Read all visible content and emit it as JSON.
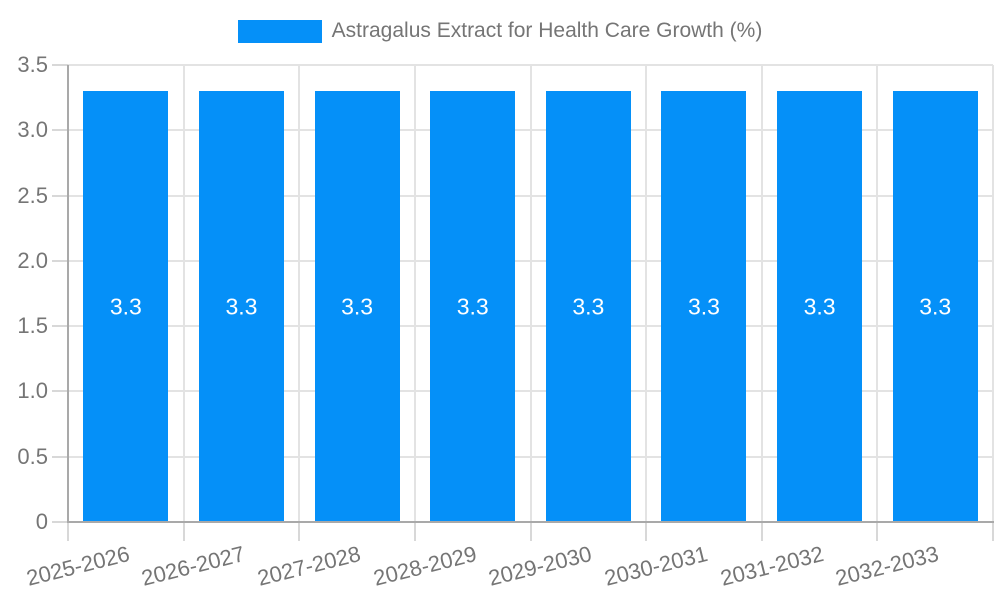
{
  "chart_data": {
    "type": "bar",
    "title": "Astragalus Extract for Health Care Growth (%)",
    "categories": [
      "2025-2026",
      "2026-2027",
      "2027-2028",
      "2028-2029",
      "2029-2030",
      "2030-2031",
      "2031-2032",
      "2032-2033"
    ],
    "values": [
      3.3,
      3.3,
      3.3,
      3.3,
      3.3,
      3.3,
      3.3,
      3.3
    ],
    "bar_labels": [
      "3.3",
      "3.3",
      "3.3",
      "3.3",
      "3.3",
      "3.3",
      "3.3",
      "3.3"
    ],
    "xlabel": "",
    "ylabel": "",
    "ylim": [
      0,
      3.5
    ],
    "ytick_values": [
      0,
      0.5,
      1,
      1.5,
      2,
      2.5,
      3,
      3.5
    ],
    "ytick_labels": [
      "0",
      "0.5",
      "1.0",
      "1.5",
      "2.0",
      "2.5",
      "3.0",
      "3.5"
    ],
    "grid": true,
    "legend": {
      "position": "top",
      "entries": [
        {
          "label": "Astragalus Extract for Health Care Growth (%)",
          "color": "#0590F8"
        }
      ]
    }
  },
  "colors": {
    "bar": "#0590F8",
    "bar_label": "#ffffff",
    "grid": "#e3e3e3",
    "tick": "#d8d8d8",
    "axis": "#a9a9a9",
    "text": "#757575",
    "background": "#ffffff"
  }
}
